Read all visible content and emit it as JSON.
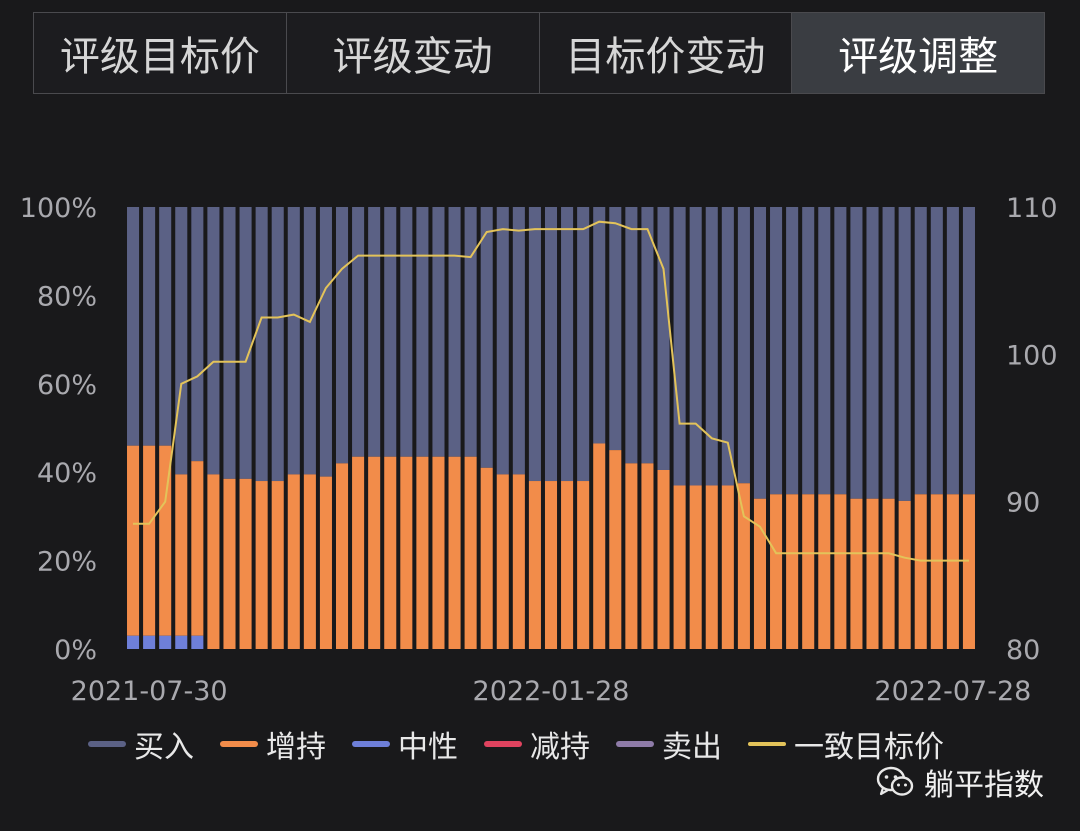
{
  "tabs": [
    {
      "label": "评级目标价",
      "active": false
    },
    {
      "label": "评级变动",
      "active": false
    },
    {
      "label": "目标价变动",
      "active": false
    },
    {
      "label": "评级调整",
      "active": true
    }
  ],
  "chart_data": {
    "type": "bar",
    "stacked": true,
    "x_tick_labels": [
      "2021-07-30",
      "2022-01-28",
      "2022-07-28"
    ],
    "y_left": {
      "ticks": [
        "0%",
        "20%",
        "40%",
        "60%",
        "80%",
        "100%"
      ],
      "range": [
        0,
        100
      ]
    },
    "y_right": {
      "ticks": [
        "80",
        "90",
        "100",
        "110"
      ],
      "range": [
        80,
        110
      ]
    },
    "series": [
      {
        "name": "买入",
        "color": "#5b6185"
      },
      {
        "name": "增持",
        "color": "#f28c4a",
        "values": [
          43,
          43,
          43,
          36.5,
          39.5,
          39.5,
          38.5,
          38.5,
          38,
          38,
          39.5,
          39.5,
          39,
          42,
          43.5,
          43.5,
          43.5,
          43.5,
          43.5,
          43.5,
          43.5,
          43.5,
          41,
          39.5,
          39.5,
          38,
          38,
          38,
          38,
          46.5,
          45,
          42,
          42,
          40.5,
          37,
          37,
          37,
          37,
          37.5,
          34,
          35,
          35,
          35,
          35,
          35,
          34,
          34,
          34,
          33.5,
          35,
          35,
          35,
          35
        ]
      },
      {
        "name": "中性",
        "color": "#6e7fd9",
        "values": [
          3,
          3,
          3,
          3,
          3,
          0,
          0,
          0,
          0,
          0,
          0,
          0,
          0,
          0,
          0,
          0,
          0,
          0,
          0,
          0,
          0,
          0,
          0,
          0,
          0,
          0,
          0,
          0,
          0,
          0,
          0,
          0,
          0,
          0,
          0,
          0,
          0,
          0,
          0,
          0,
          0,
          0,
          0,
          0,
          0,
          0,
          0,
          0,
          0,
          0,
          0,
          0,
          0
        ]
      },
      {
        "name": "减持",
        "color": "#e0435f"
      },
      {
        "name": "卖出",
        "color": "#8e7ba8"
      },
      {
        "name": "一致目标价",
        "color": "#e3c35a",
        "type": "line",
        "values": [
          88.5,
          88.5,
          90,
          98,
          98.5,
          99.5,
          99.5,
          99.5,
          102.5,
          102.5,
          102.7,
          102.2,
          104.5,
          105.8,
          106.7,
          106.7,
          106.7,
          106.7,
          106.7,
          106.7,
          106.7,
          106.6,
          108.3,
          108.5,
          108.4,
          108.5,
          108.5,
          108.5,
          108.5,
          109,
          108.9,
          108.5,
          108.5,
          105.8,
          95.3,
          95.3,
          94.3,
          94,
          89,
          88.3,
          86.5,
          86.5,
          86.5,
          86.5,
          86.5,
          86.5,
          86.5,
          86.5,
          86.2,
          86,
          86,
          86,
          86
        ]
      }
    ]
  },
  "legend": [
    {
      "label": "买入",
      "color": "#5b6185"
    },
    {
      "label": "增持",
      "color": "#f28c4a"
    },
    {
      "label": "中性",
      "color": "#6e7fd9"
    },
    {
      "label": "减持",
      "color": "#e0435f"
    },
    {
      "label": "卖出",
      "color": "#8e7ba8"
    },
    {
      "label": "一致目标价",
      "color": "#e3c35a"
    }
  ],
  "watermark": {
    "text": "躺平指数",
    "icon": "wechat-icon"
  }
}
